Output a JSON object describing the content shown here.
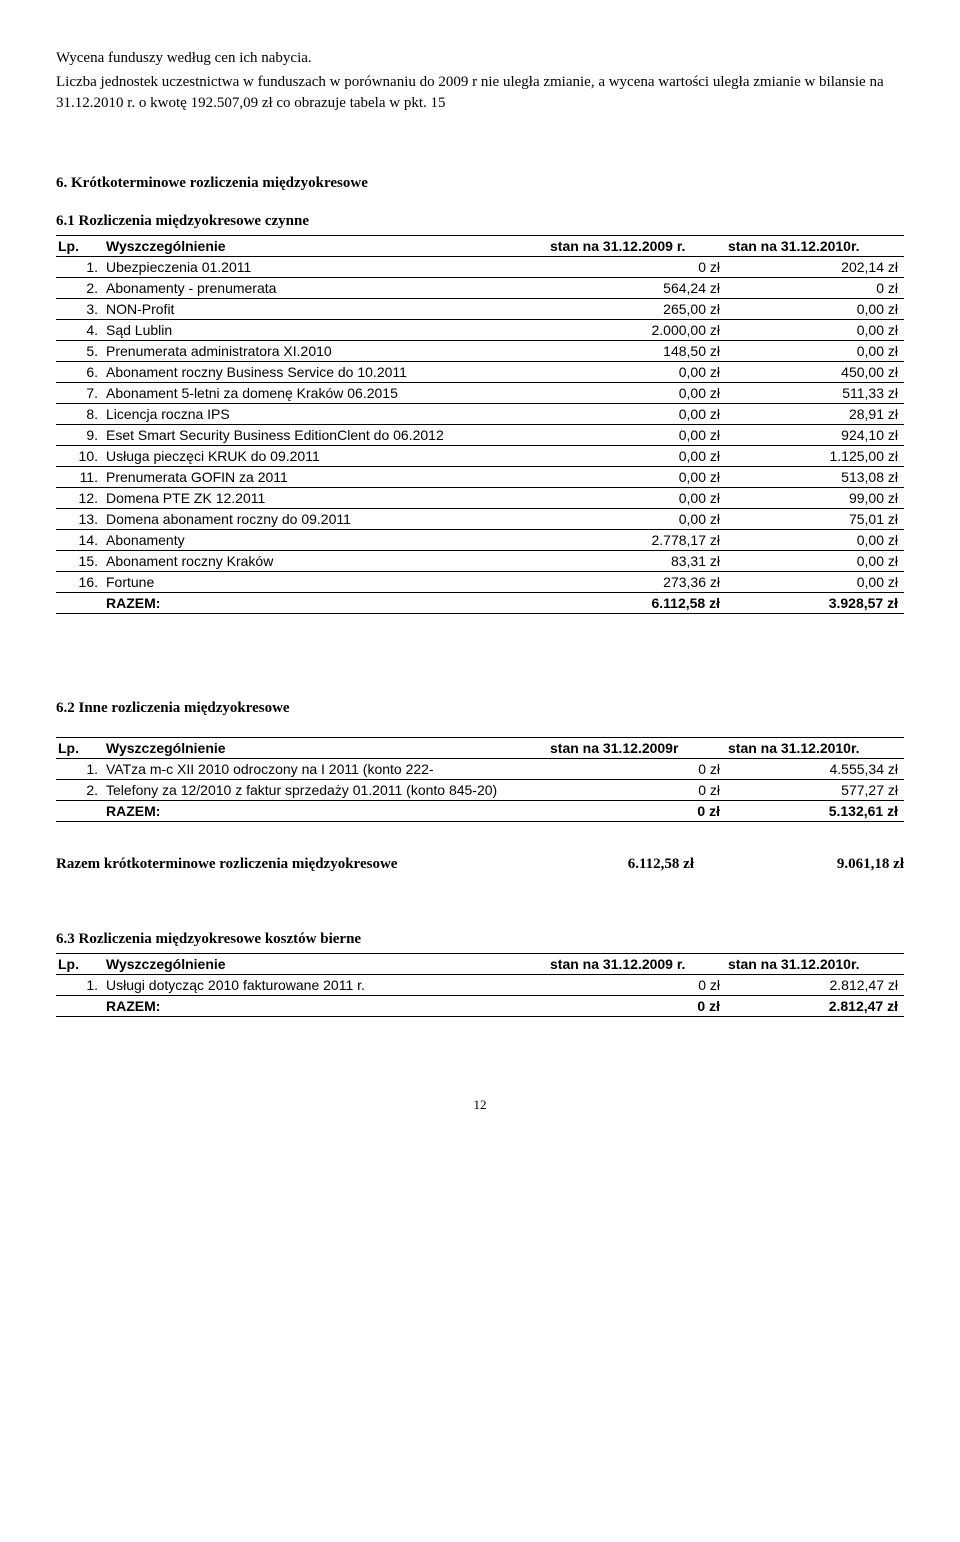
{
  "intro": {
    "p1": "Wycena funduszy według cen ich nabycia.",
    "p2": "Liczba jednostek uczestnictwa w funduszach w porównaniu do 2009 r nie uległa zmianie, a wycena wartości uległa zmianie w bilansie na 31.12.2010 r. o kwotę 192.507,09 zł co obrazuje tabela w pkt. 15"
  },
  "section6_title": "6. Krótkoterminowe rozliczenia międzyokresowe",
  "section61_title": "6.1 Rozliczenia międzyokresowe czynne",
  "table_headers": {
    "lp": "Lp.",
    "name": "Wyszczególnienie",
    "c2009": "stan na 31.12.2009 r.",
    "c2009r": "stan na 31.12.2009r",
    "c2010": "stan na 31.12.2010r."
  },
  "table61": {
    "rows": [
      {
        "lp": "1.",
        "name": "Ubezpieczenia 01.2011",
        "v1": "0 zł",
        "v2": "202,14 zł"
      },
      {
        "lp": "2.",
        "name": "Abonamenty - prenumerata",
        "v1": "564,24 zł",
        "v2": "0 zł"
      },
      {
        "lp": "3.",
        "name": "NON-Profit",
        "v1": "265,00 zł",
        "v2": "0,00 zł"
      },
      {
        "lp": "4.",
        "name": "Sąd Lublin",
        "v1": "2.000,00 zł",
        "v2": "0,00 zł"
      },
      {
        "lp": "5.",
        "name": "Prenumerata administratora XI.2010",
        "v1": "148,50 zł",
        "v2": "0,00 zł"
      },
      {
        "lp": "6.",
        "name": "Abonament roczny Business Service do 10.2011",
        "v1": "0,00 zł",
        "v2": "450,00 zł"
      },
      {
        "lp": "7.",
        "name": "Abonament 5-letni za domenę Kraków 06.2015",
        "v1": "0,00 zł",
        "v2": "511,33 zł"
      },
      {
        "lp": "8.",
        "name": "Licencja roczna IPS",
        "v1": "0,00 zł",
        "v2": "28,91 zł"
      },
      {
        "lp": "9.",
        "name": "Eset Smart Security Business EditionClent do 06.2012",
        "v1": "0,00 zł",
        "v2": "924,10 zł"
      },
      {
        "lp": "10.",
        "name": "Usługa pieczęci KRUK do 09.2011",
        "v1": "0,00 zł",
        "v2": "1.125,00 zł"
      },
      {
        "lp": "11.",
        "name": "Prenumerata GOFIN za 2011",
        "v1": "0,00 zł",
        "v2": "513,08 zł"
      },
      {
        "lp": "12.",
        "name": "Domena PTE ZK 12.2011",
        "v1": "0,00 zł",
        "v2": "99,00 zł"
      },
      {
        "lp": "13.",
        "name": "Domena abonament roczny do 09.2011",
        "v1": "0,00 zł",
        "v2": "75,01 zł"
      },
      {
        "lp": "14.",
        "name": "Abonamenty",
        "v1": "2.778,17 zł",
        "v2": "0,00 zł"
      },
      {
        "lp": "15.",
        "name": "Abonament roczny Kraków",
        "v1": "83,31 zł",
        "v2": "0,00 zł"
      },
      {
        "lp": "16.",
        "name": "Fortune",
        "v1": "273,36 zł",
        "v2": "0,00 zł"
      }
    ],
    "razem_label": "RAZEM:",
    "razem_v1": "6.112,58 zł",
    "razem_v2": "3.928,57 zł"
  },
  "section62_title": "6.2 Inne rozliczenia międzyokresowe",
  "table62": {
    "rows": [
      {
        "lp": "1.",
        "name": "VATza m-c XII 2010 odroczony na I 2011 (konto 222-",
        "v1": "0 zł",
        "v2": "4.555,34 zł"
      },
      {
        "lp": "2.",
        "name": "Telefony za 12/2010 z faktur sprzedaży 01.2011 (konto 845-20)",
        "v1": "0 zł",
        "v2": "577,27 zł"
      }
    ],
    "razem_label": "RAZEM:",
    "razem_v1": "0 zł",
    "razem_v2": "5.132,61 zł"
  },
  "summary": {
    "label": "Razem krótkoterminowe rozliczenia międzyokresowe",
    "v1": "6.112,58 zł",
    "v2": "9.061,18 zł"
  },
  "section63_title": "6.3 Rozliczenia międzyokresowe kosztów bierne",
  "table63": {
    "rows": [
      {
        "lp": "1.",
        "name": "Usługi dotycząc 2010 fakturowane 2011 r.",
        "v1": "0 zł",
        "v2": "2.812,47 zł"
      }
    ],
    "razem_label": "RAZEM:",
    "razem_v1": "0 zł",
    "razem_v2": "2.812,47 zł"
  },
  "page_number": "12"
}
